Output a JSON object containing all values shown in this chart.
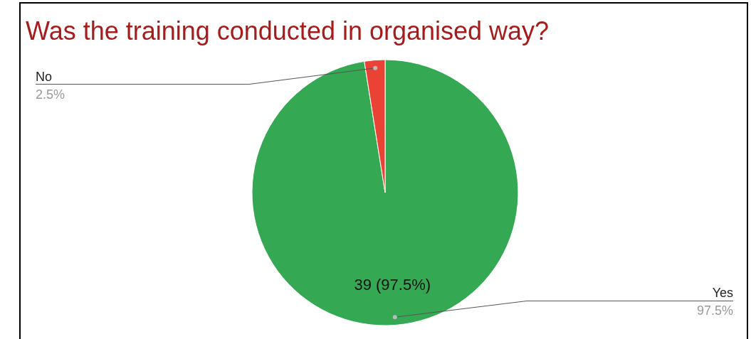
{
  "chart_data": {
    "type": "pie",
    "title": "Was the training conducted in organised way?",
    "categories": [
      "Yes",
      "No"
    ],
    "values": [
      97.5,
      2.5
    ],
    "colors": [
      "#34a853",
      "#ea4335"
    ],
    "value_labels": [
      "97.5%",
      "2.5%"
    ],
    "annotations": [
      "39 (97.5%)"
    ]
  }
}
